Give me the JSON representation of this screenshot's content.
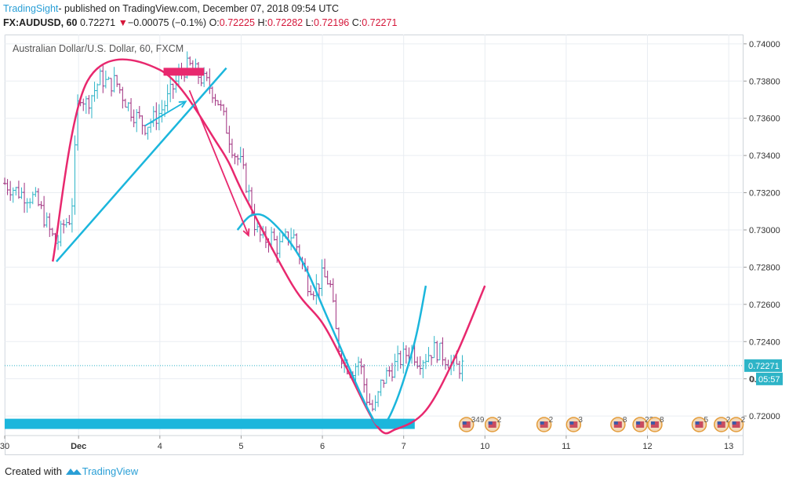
{
  "header": {
    "brand": "TradingSight",
    "publish_text": "- published on TradingView.com, December 07, 2018 09:54 UTC",
    "symbol": "FX:AUDUSD, 60",
    "last": "0.72271",
    "change_arrow": "▼",
    "change": "−0.00075 (−0.1%)",
    "o_label": "O:",
    "o_value": "0.72225",
    "h_label": "H:",
    "h_value": "0.72282",
    "l_label": "L:",
    "l_value": "0.72196",
    "c_label": "C:",
    "c_value": "0.72271"
  },
  "footer": {
    "created_with": "Created with",
    "brand": "TradingView"
  },
  "colors": {
    "up": "#2eb4c7",
    "down": "#a0307f",
    "pink": "#e8286e",
    "cyan": "#1bb6dc",
    "price_line": "#2eb4c7",
    "grid": "#e9edf2"
  },
  "chart_data": {
    "type": "candlestick",
    "title": "Australian Dollar/U.S. Dollar, 60, FXCM",
    "ylim": [
      0.71895,
      0.7405
    ],
    "x_index_range": [
      0,
      100
    ],
    "y_ticks": [
      "0.74000",
      "0.73800",
      "0.73600",
      "0.73400",
      "0.73200",
      "0.73000",
      "0.72800",
      "0.72600",
      "0.72400",
      "0.72200",
      "0.72000"
    ],
    "x_ticks": [
      {
        "label": "30",
        "i": 0,
        "bold": false
      },
      {
        "label": "Dec",
        "i": 10,
        "bold": true
      },
      {
        "label": "4",
        "i": 21,
        "bold": false
      },
      {
        "label": "5",
        "i": 32,
        "bold": false
      },
      {
        "label": "6",
        "i": 43,
        "bold": false
      },
      {
        "label": "7",
        "i": 54,
        "bold": false
      },
      {
        "label": "10",
        "i": 65,
        "bold": false
      },
      {
        "label": "11",
        "i": 76,
        "bold": false
      },
      {
        "label": "12",
        "i": 87,
        "bold": false
      },
      {
        "label": "13",
        "i": 98,
        "bold": false
      }
    ],
    "current_price": "0.72271",
    "countdown_prefix": "0.",
    "countdown": "05:57",
    "price_path": [
      [
        0,
        0.7325
      ],
      [
        2,
        0.732
      ],
      [
        4,
        0.7317
      ],
      [
        5,
        0.731
      ],
      [
        6,
        0.73
      ],
      [
        7,
        0.7292
      ],
      [
        8,
        0.7303
      ],
      [
        9,
        0.7307
      ],
      [
        10,
        0.7375
      ],
      [
        11,
        0.7368
      ],
      [
        12,
        0.7374
      ],
      [
        13,
        0.7382
      ],
      [
        14,
        0.7378
      ],
      [
        15,
        0.738
      ],
      [
        16,
        0.7372
      ],
      [
        17,
        0.7365
      ],
      [
        18,
        0.736
      ],
      [
        19,
        0.7356
      ],
      [
        20,
        0.7359
      ],
      [
        21,
        0.7363
      ],
      [
        22,
        0.737
      ],
      [
        23,
        0.7378
      ],
      [
        24,
        0.7386
      ],
      [
        25,
        0.7388
      ],
      [
        26,
        0.7384
      ],
      [
        27,
        0.738
      ],
      [
        28,
        0.7376
      ],
      [
        29,
        0.7368
      ],
      [
        30,
        0.7355
      ],
      [
        31,
        0.7342
      ],
      [
        32,
        0.7335
      ],
      [
        33,
        0.732
      ],
      [
        34,
        0.73
      ],
      [
        35,
        0.7294
      ],
      [
        36,
        0.7297
      ],
      [
        37,
        0.729
      ],
      [
        38,
        0.7295
      ],
      [
        39,
        0.7298
      ],
      [
        40,
        0.7285
      ],
      [
        41,
        0.7272
      ],
      [
        42,
        0.7268
      ],
      [
        43,
        0.7275
      ],
      [
        44,
        0.7272
      ],
      [
        45,
        0.724
      ],
      [
        46,
        0.7228
      ],
      [
        47,
        0.7225
      ],
      [
        48,
        0.723
      ],
      [
        49,
        0.721
      ],
      [
        50,
        0.7202
      ],
      [
        51,
        0.7218
      ],
      [
        52,
        0.7224
      ],
      [
        53,
        0.7228
      ],
      [
        54,
        0.7232
      ],
      [
        55,
        0.7236
      ],
      [
        56,
        0.723
      ],
      [
        57,
        0.7232
      ],
      [
        58,
        0.7236
      ],
      [
        59,
        0.7234
      ],
      [
        60,
        0.723
      ],
      [
        61,
        0.7226
      ],
      [
        62,
        0.7227
      ]
    ],
    "overlays": {
      "pink_curve_1": [
        [
          6.5,
          0.7283
        ],
        [
          11.2,
          0.738
        ],
        [
          21,
          0.7386
        ],
        [
          29,
          0.7345
        ],
        [
          32.5,
          0.7318
        ],
        [
          39,
          0.727
        ],
        [
          43,
          0.725
        ],
        [
          46,
          0.7228
        ],
        [
          50.5,
          0.7194
        ],
        [
          53,
          0.7193
        ],
        [
          57,
          0.7203
        ],
        [
          61,
          0.7232
        ],
        [
          65,
          0.727
        ]
      ],
      "cyan_line_1": [
        [
          7,
          0.7283
        ],
        [
          30,
          0.7387
        ]
      ],
      "cyan_curve_2": [
        [
          31.5,
          0.73
        ],
        [
          33.5,
          0.7308
        ],
        [
          36,
          0.7305
        ],
        [
          40,
          0.7285
        ],
        [
          44,
          0.725
        ],
        [
          49,
          0.7205
        ],
        [
          51,
          0.7195
        ],
        [
          53,
          0.7208
        ],
        [
          55.5,
          0.724
        ],
        [
          57,
          0.727
        ]
      ],
      "pink_arrow": [
        [
          25,
          0.7375
        ],
        [
          33,
          0.7297
        ]
      ],
      "cyan_arrow": [
        [
          19,
          0.7356
        ],
        [
          24.5,
          0.7369
        ]
      ],
      "pink_zone": [
        [
          21.5,
          0.7385
        ],
        [
          27,
          0.7385
        ]
      ],
      "cyan_zone": [
        [
          0,
          0.7196
        ],
        [
          55.5,
          0.7196
        ]
      ]
    },
    "events": [
      {
        "i": 62.5,
        "label": "349"
      },
      {
        "i": 66,
        "label": "2"
      },
      {
        "i": 73,
        "label": "2"
      },
      {
        "i": 77,
        "label": "3"
      },
      {
        "i": 83,
        "label": "8"
      },
      {
        "i": 86,
        "label": "22"
      },
      {
        "i": 88,
        "label": "8"
      },
      {
        "i": 94,
        "label": "5"
      },
      {
        "i": 97,
        "label": "2"
      },
      {
        "i": 99,
        "label": "2"
      }
    ]
  }
}
